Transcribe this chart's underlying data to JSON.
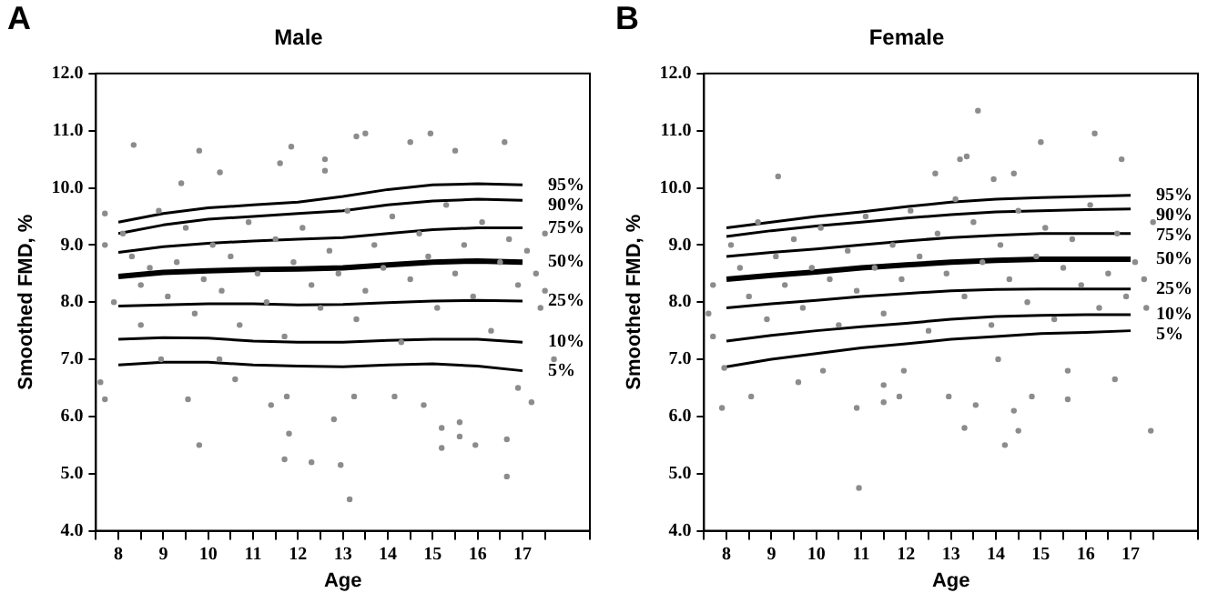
{
  "chart_data": [
    {
      "type": "line",
      "title": "Male",
      "annotations": [
        "A"
      ],
      "xlabel": "Age",
      "ylabel": "Smoothed FMD, %",
      "xlim": [
        7.5,
        18.5
      ],
      "xticks": [
        {
          "value": 7.5,
          "label": null
        },
        8,
        {
          "value": 8.5,
          "label": null
        },
        9,
        {
          "value": 9.5,
          "label": null
        },
        10,
        {
          "value": 10.5,
          "label": null
        },
        11,
        {
          "value": 11.5,
          "label": null
        },
        12,
        {
          "value": 12.5,
          "label": null
        },
        13,
        {
          "value": 13.5,
          "label": null
        },
        14,
        {
          "value": 14.5,
          "label": null
        },
        15,
        {
          "value": 15.5,
          "label": null
        },
        16,
        {
          "value": 16.5,
          "label": null
        },
        17,
        {
          "value": 17.5,
          "label": null
        },
        {
          "value": 18.5,
          "label": null
        }
      ],
      "ylim": [
        4,
        12
      ],
      "yticks": [
        {
          "value": 4,
          "label": "4.0"
        },
        {
          "value": 5,
          "label": "5.0"
        },
        {
          "value": 6,
          "label": "6.0"
        },
        {
          "value": 7,
          "label": "7.0"
        },
        {
          "value": 8,
          "label": "8.0"
        },
        {
          "value": 9,
          "label": "9.0"
        },
        {
          "value": 10,
          "label": "10.0"
        },
        {
          "value": 11,
          "label": "11.0"
        },
        {
          "value": 12,
          "label": "12.0"
        }
      ],
      "grid": false,
      "legend": false,
      "series": [
        {
          "type": "scatter",
          "color": "#8c8c8c",
          "marker": "circle",
          "x": [
            8.34,
            9.8,
            10.26,
            11.85,
            11.6,
            12.6,
            12.6,
            13.3,
            13.5,
            14.5,
            14.95,
            15.5,
            16.6,
            9.4,
            7.7,
            7.6,
            7.7,
            9.55,
            9.8,
            10.25,
            10.6,
            11.4,
            11.75,
            11.8,
            11.7,
            12.3,
            12.8,
            12.95,
            13.15,
            13.25,
            14.15,
            14.8,
            15.2,
            15.2,
            15.6,
            15.6,
            15.95,
            16.65,
            16.65,
            17.2,
            16.9,
            17.7,
            17.5,
            17.4,
            8.5,
            8.95,
            8.1,
            8.3,
            8.5,
            8.7,
            8.9,
            9.1,
            9.3,
            9.5,
            9.7,
            9.9,
            10.1,
            10.3,
            10.5,
            10.7,
            10.9,
            11.1,
            11.3,
            11.5,
            11.7,
            11.9,
            12.1,
            12.3,
            12.5,
            12.7,
            12.9,
            13.1,
            13.3,
            13.5,
            13.7,
            13.9,
            14.1,
            14.3,
            14.5,
            14.7,
            14.9,
            15.1,
            15.3,
            15.5,
            15.7,
            15.9,
            16.1,
            16.3,
            16.5,
            16.7,
            16.9,
            17.1,
            17.3,
            17.5,
            7.9,
            7.7
          ],
          "values": [
            10.75,
            10.65,
            10.27,
            10.72,
            10.43,
            10.5,
            10.3,
            10.9,
            10.95,
            10.8,
            10.95,
            10.65,
            10.8,
            10.08,
            9.55,
            6.6,
            6.3,
            6.3,
            5.5,
            7.0,
            6.65,
            6.2,
            6.35,
            5.7,
            5.25,
            5.2,
            5.95,
            5.15,
            4.55,
            6.35,
            6.35,
            6.2,
            5.8,
            5.45,
            5.9,
            5.65,
            5.5,
            5.6,
            4.95,
            6.25,
            6.5,
            7.0,
            9.2,
            7.9,
            7.6,
            7.0,
            9.2,
            8.8,
            8.3,
            8.6,
            9.6,
            8.1,
            8.7,
            9.3,
            7.8,
            8.4,
            9.0,
            8.2,
            8.8,
            7.6,
            9.4,
            8.5,
            8.0,
            9.1,
            7.4,
            8.7,
            9.3,
            8.3,
            7.9,
            8.9,
            8.5,
            9.6,
            7.7,
            8.2,
            9.0,
            8.6,
            9.5,
            7.3,
            8.4,
            9.2,
            8.8,
            7.9,
            9.7,
            8.5,
            9.0,
            8.1,
            9.4,
            7.5,
            8.7,
            9.1,
            8.3,
            8.9,
            8.5,
            8.2,
            8.0,
            9.0
          ]
        },
        {
          "type": "line",
          "name": "95%",
          "color": "#000000",
          "x": [
            8,
            9,
            10,
            11,
            12,
            13,
            14,
            15,
            16,
            17
          ],
          "values": [
            9.4,
            9.55,
            9.65,
            9.7,
            9.75,
            9.85,
            9.97,
            10.05,
            10.07,
            10.05
          ]
        },
        {
          "type": "line",
          "name": "90%",
          "color": "#000000",
          "x": [
            8,
            9,
            10,
            11,
            12,
            13,
            14,
            15,
            16,
            17
          ],
          "values": [
            9.2,
            9.35,
            9.45,
            9.5,
            9.55,
            9.6,
            9.7,
            9.77,
            9.8,
            9.78
          ]
        },
        {
          "type": "line",
          "name": "75%",
          "color": "#000000",
          "x": [
            8,
            9,
            10,
            11,
            12,
            13,
            14,
            15,
            16,
            17
          ],
          "values": [
            8.87,
            8.97,
            9.03,
            9.07,
            9.1,
            9.13,
            9.2,
            9.27,
            9.3,
            9.3
          ]
        },
        {
          "type": "line",
          "name": "50%",
          "color": "#000000",
          "x": [
            8,
            9,
            10,
            11,
            12,
            13,
            14,
            15,
            16,
            17
          ],
          "values": [
            8.45,
            8.52,
            8.55,
            8.57,
            8.58,
            8.6,
            8.65,
            8.7,
            8.72,
            8.7
          ]
        },
        {
          "type": "line",
          "name": "25%",
          "color": "#000000",
          "x": [
            8,
            9,
            10,
            11,
            12,
            13,
            14,
            15,
            16,
            17
          ],
          "values": [
            7.93,
            7.95,
            7.97,
            7.97,
            7.95,
            7.96,
            7.99,
            8.02,
            8.03,
            8.02
          ]
        },
        {
          "type": "line",
          "name": "10%",
          "color": "#000000",
          "x": [
            8,
            9,
            10,
            11,
            12,
            13,
            14,
            15,
            16,
            17
          ],
          "values": [
            7.35,
            7.38,
            7.37,
            7.32,
            7.3,
            7.3,
            7.33,
            7.35,
            7.35,
            7.3
          ]
        },
        {
          "type": "line",
          "name": "5%",
          "color": "#000000",
          "x": [
            8,
            9,
            10,
            11,
            12,
            13,
            14,
            15,
            16,
            17
          ],
          "values": [
            6.9,
            6.95,
            6.95,
            6.9,
            6.88,
            6.87,
            6.9,
            6.92,
            6.88,
            6.8
          ]
        }
      ]
    },
    {
      "type": "line",
      "title": "Female",
      "annotations": [
        "B"
      ],
      "xlabel": "Age",
      "ylabel": "Smoothed FMD, %",
      "xlim": [
        7.5,
        18.5
      ],
      "xticks": [
        {
          "value": 7.5,
          "label": null
        },
        8,
        {
          "value": 8.5,
          "label": null
        },
        9,
        {
          "value": 9.5,
          "label": null
        },
        10,
        {
          "value": 10.5,
          "label": null
        },
        11,
        {
          "value": 11.5,
          "label": null
        },
        12,
        {
          "value": 12.5,
          "label": null
        },
        13,
        {
          "value": 13.5,
          "label": null
        },
        14,
        {
          "value": 14.5,
          "label": null
        },
        15,
        {
          "value": 15.5,
          "label": null
        },
        16,
        {
          "value": 16.5,
          "label": null
        },
        17,
        {
          "value": 17.5,
          "label": null
        },
        {
          "value": 18.5,
          "label": null
        }
      ],
      "ylim": [
        4,
        12
      ],
      "yticks": [
        {
          "value": 4,
          "label": "4.0"
        },
        {
          "value": 5,
          "label": "5.0"
        },
        {
          "value": 6,
          "label": "6.0"
        },
        {
          "value": 7,
          "label": "7.0"
        },
        {
          "value": 8,
          "label": "8.0"
        },
        {
          "value": 9,
          "label": "9.0"
        },
        {
          "value": 10,
          "label": "10.0"
        },
        {
          "value": 11,
          "label": "11.0"
        },
        {
          "value": 12,
          "label": "12.0"
        }
      ],
      "grid": false,
      "legend": false,
      "series": [
        {
          "type": "scatter",
          "color": "#8c8c8c",
          "marker": "circle",
          "x": [
            13.6,
            13.35,
            13.2,
            15.0,
            16.2,
            16.8,
            9.15,
            12.65,
            13.95,
            14.4,
            10.95,
            10.9,
            9.6,
            10.15,
            8.55,
            7.9,
            11.5,
            11.5,
            11.95,
            11.85,
            12.95,
            13.3,
            13.55,
            14.2,
            14.5,
            14.4,
            14.8,
            15.6,
            15.6,
            16.65,
            17.45,
            14.05,
            7.95,
            7.7,
            17.35,
            8.1,
            8.3,
            8.5,
            8.7,
            8.9,
            9.1,
            9.3,
            9.5,
            9.7,
            9.9,
            10.1,
            10.3,
            10.5,
            10.7,
            10.9,
            11.1,
            11.3,
            11.5,
            11.7,
            11.9,
            12.1,
            12.3,
            12.5,
            12.7,
            12.9,
            13.1,
            13.3,
            13.5,
            13.7,
            13.9,
            14.1,
            14.3,
            14.5,
            14.7,
            14.9,
            15.1,
            15.3,
            15.5,
            15.7,
            15.9,
            16.1,
            16.3,
            16.5,
            16.7,
            16.9,
            17.1,
            17.3,
            17.5,
            7.7,
            7.6
          ],
          "values": [
            11.35,
            10.55,
            10.5,
            10.8,
            10.95,
            10.5,
            10.2,
            10.25,
            10.15,
            10.25,
            4.75,
            6.15,
            6.6,
            6.8,
            6.35,
            6.15,
            6.55,
            6.25,
            6.8,
            6.35,
            6.35,
            5.8,
            6.2,
            5.5,
            5.75,
            6.1,
            6.35,
            6.3,
            6.8,
            6.65,
            5.75,
            7.0,
            6.85,
            7.4,
            7.9,
            9.0,
            8.6,
            8.1,
            9.4,
            7.7,
            8.8,
            8.3,
            9.1,
            7.9,
            8.6,
            9.3,
            8.4,
            7.6,
            8.9,
            8.2,
            9.5,
            8.6,
            7.8,
            9.0,
            8.4,
            9.6,
            8.8,
            7.5,
            9.2,
            8.5,
            9.8,
            8.1,
            9.4,
            8.7,
            7.6,
            9.0,
            8.4,
            9.6,
            8.0,
            8.8,
            9.3,
            7.7,
            8.6,
            9.1,
            8.3,
            9.7,
            7.9,
            8.5,
            9.2,
            8.1,
            8.7,
            8.4,
            9.4,
            8.3,
            7.8
          ]
        },
        {
          "type": "line",
          "name": "95%",
          "color": "#000000",
          "x": [
            8,
            9,
            10,
            11,
            12,
            13,
            14,
            15,
            16,
            17
          ],
          "values": [
            9.3,
            9.4,
            9.5,
            9.58,
            9.67,
            9.75,
            9.8,
            9.83,
            9.85,
            9.87
          ]
        },
        {
          "type": "line",
          "name": "90%",
          "color": "#000000",
          "x": [
            8,
            9,
            10,
            11,
            12,
            13,
            14,
            15,
            16,
            17
          ],
          "values": [
            9.15,
            9.25,
            9.33,
            9.4,
            9.47,
            9.53,
            9.58,
            9.6,
            9.62,
            9.63
          ]
        },
        {
          "type": "line",
          "name": "75%",
          "color": "#000000",
          "x": [
            8,
            9,
            10,
            11,
            12,
            13,
            14,
            15,
            16,
            17
          ],
          "values": [
            8.8,
            8.87,
            8.93,
            9.0,
            9.07,
            9.13,
            9.17,
            9.2,
            9.2,
            9.2
          ]
        },
        {
          "type": "line",
          "name": "50%",
          "color": "#000000",
          "x": [
            8,
            9,
            10,
            11,
            12,
            13,
            14,
            15,
            16,
            17
          ],
          "values": [
            8.4,
            8.47,
            8.53,
            8.6,
            8.65,
            8.7,
            8.73,
            8.75,
            8.75,
            8.75
          ]
        },
        {
          "type": "line",
          "name": "25%",
          "color": "#000000",
          "x": [
            8,
            9,
            10,
            11,
            12,
            13,
            14,
            15,
            16,
            17
          ],
          "values": [
            7.9,
            7.97,
            8.03,
            8.1,
            8.15,
            8.2,
            8.22,
            8.23,
            8.23,
            8.23
          ]
        },
        {
          "type": "line",
          "name": "10%",
          "color": "#000000",
          "x": [
            8,
            9,
            10,
            11,
            12,
            13,
            14,
            15,
            16,
            17
          ],
          "values": [
            7.32,
            7.42,
            7.5,
            7.57,
            7.63,
            7.7,
            7.75,
            7.77,
            7.78,
            7.78
          ]
        },
        {
          "type": "line",
          "name": "5%",
          "color": "#000000",
          "x": [
            8,
            9,
            10,
            11,
            12,
            13,
            14,
            15,
            16,
            17
          ],
          "values": [
            6.87,
            7.0,
            7.1,
            7.2,
            7.27,
            7.35,
            7.4,
            7.45,
            7.47,
            7.5
          ]
        }
      ]
    }
  ]
}
